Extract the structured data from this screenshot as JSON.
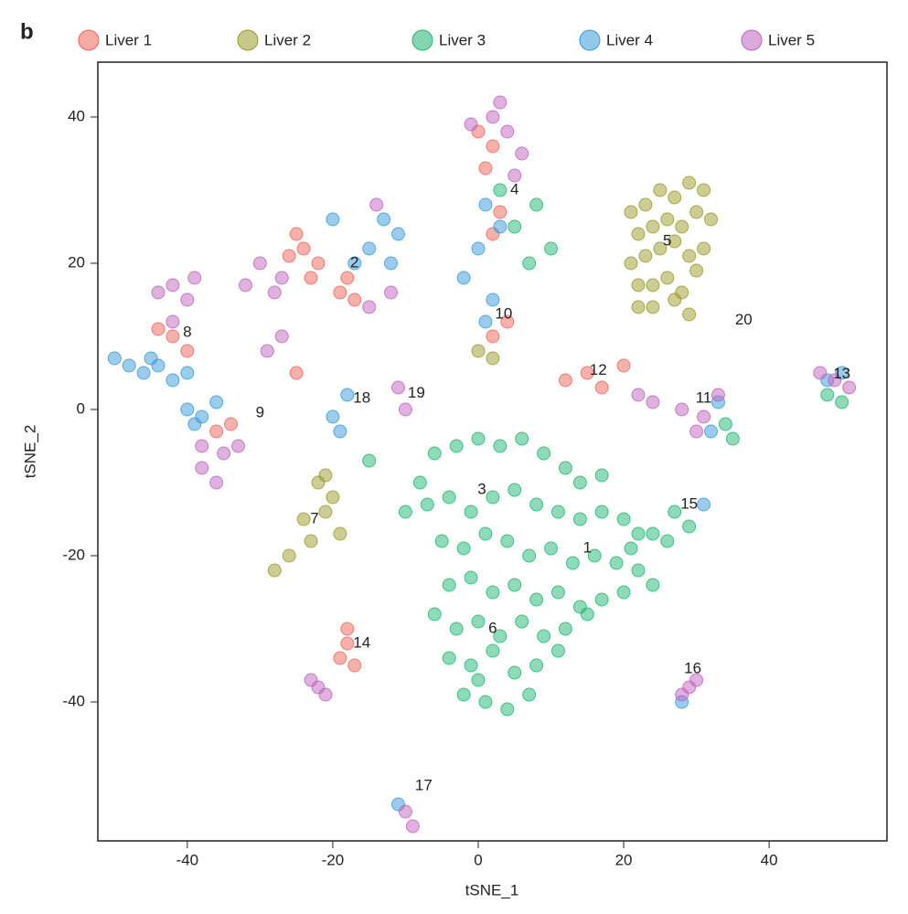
{
  "chart_data": {
    "type": "scatter",
    "panel_label": "b",
    "xlabel": "tSNE_1",
    "ylabel": "tSNE_2",
    "xlim": [
      -52.3,
      56.2
    ],
    "ylim": [
      -59,
      47.5
    ],
    "xticks": [
      -40,
      -20,
      0,
      20,
      40
    ],
    "yticks": [
      -40,
      -20,
      0,
      20,
      40
    ],
    "series": [
      {
        "name": "Liver 1",
        "color": "#f0645a",
        "x": [
          -24,
          -22,
          -25,
          -23,
          -18,
          -17,
          -19,
          -26,
          0,
          2,
          1,
          3,
          2,
          -42,
          -40,
          -44,
          -34,
          -36,
          12,
          15,
          17,
          20,
          -18,
          -19,
          -17,
          -18,
          2,
          4,
          -25
        ],
        "y": [
          22,
          20,
          24,
          18,
          18,
          15,
          16,
          21,
          38,
          36,
          33,
          27,
          24,
          10,
          8,
          11,
          -2,
          -3,
          4,
          5,
          3,
          6,
          -32,
          -34,
          -35,
          -30,
          10,
          12,
          5
        ]
      },
      {
        "name": "Liver 2",
        "color": "#9a9a2a",
        "x": [
          21,
          23,
          25,
          27,
          29,
          31,
          22,
          24,
          26,
          28,
          30,
          32,
          21,
          23,
          25,
          27,
          29,
          31,
          22,
          24,
          26,
          28,
          30,
          24,
          27,
          29,
          22,
          -22,
          -21,
          -23,
          -20,
          -24,
          -19,
          -26,
          -28,
          -21,
          0,
          2
        ],
        "y": [
          27,
          28,
          30,
          29,
          31,
          30,
          24,
          25,
          26,
          25,
          27,
          26,
          20,
          21,
          22,
          23,
          21,
          22,
          17,
          17,
          18,
          16,
          19,
          14,
          15,
          13,
          14,
          -10,
          -14,
          -18,
          -12,
          -15,
          -17,
          -20,
          -22,
          -9,
          8,
          7
        ]
      },
      {
        "name": "Liver 3",
        "color": "#1fb574",
        "x": [
          -8,
          -6,
          -3,
          0,
          3,
          6,
          9,
          12,
          14,
          17,
          -10,
          -7,
          -4,
          -1,
          2,
          5,
          8,
          11,
          14,
          17,
          20,
          22,
          -5,
          -2,
          1,
          4,
          7,
          10,
          13,
          16,
          19,
          22,
          24,
          -4,
          -1,
          2,
          5,
          8,
          11,
          14,
          17,
          20,
          -6,
          -3,
          0,
          3,
          6,
          9,
          12,
          15,
          -4,
          -1,
          2,
          5,
          8,
          11,
          -2,
          1,
          4,
          7,
          0,
          24,
          21,
          3,
          5,
          8,
          10,
          7,
          48,
          50,
          27,
          29,
          26,
          34,
          35,
          -15
        ],
        "y": [
          -10,
          -6,
          -5,
          -4,
          -5,
          -4,
          -6,
          -8,
          -10,
          -9,
          -14,
          -13,
          -12,
          -14,
          -12,
          -11,
          -13,
          -14,
          -15,
          -14,
          -15,
          -17,
          -18,
          -19,
          -17,
          -18,
          -20,
          -19,
          -21,
          -20,
          -21,
          -22,
          -24,
          -24,
          -23,
          -25,
          -24,
          -26,
          -25,
          -27,
          -26,
          -25,
          -28,
          -30,
          -29,
          -31,
          -29,
          -31,
          -30,
          -28,
          -34,
          -35,
          -33,
          -36,
          -35,
          -33,
          -39,
          -40,
          -41,
          -39,
          -37,
          -17,
          -19,
          30,
          25,
          28,
          22,
          20,
          2,
          1,
          -14,
          -16,
          -18,
          -2,
          -4,
          -7
        ]
      },
      {
        "name": "Liver 4",
        "color": "#3a9ad9",
        "x": [
          -48,
          -46,
          -44,
          -42,
          -50,
          -45,
          -40,
          -40,
          -38,
          -36,
          -39,
          -13,
          -11,
          -15,
          -17,
          -12,
          -20,
          1,
          3,
          0,
          -2,
          2,
          1,
          -20,
          -18,
          -19,
          50,
          48,
          33,
          32,
          31,
          28,
          -11
        ],
        "y": [
          6,
          5,
          6,
          4,
          7,
          7,
          5,
          0,
          -1,
          1,
          -2,
          26,
          24,
          22,
          20,
          20,
          26,
          28,
          25,
          22,
          18,
          15,
          12,
          -1,
          2,
          -3,
          5,
          4,
          1,
          -3,
          -13,
          -40,
          -54
        ]
      },
      {
        "name": "Liver 5",
        "color": "#c063c0",
        "x": [
          -42,
          -40,
          -44,
          -42,
          -39,
          -38,
          -35,
          -36,
          -33,
          -38,
          -30,
          -27,
          -28,
          -14,
          -12,
          -15,
          -32,
          2,
          4,
          6,
          5,
          3,
          -1,
          49,
          51,
          47,
          28,
          31,
          33,
          30,
          22,
          24,
          29,
          30,
          28,
          -10,
          -9,
          -22,
          -21,
          -23,
          -11,
          -10,
          -29,
          -27
        ],
        "y": [
          17,
          15,
          16,
          12,
          18,
          -8,
          -6,
          -10,
          -5,
          -5,
          20,
          18,
          16,
          28,
          16,
          14,
          17,
          40,
          38,
          35,
          32,
          42,
          39,
          4,
          3,
          5,
          0,
          -1,
          2,
          -3,
          2,
          1,
          -38,
          -37,
          -39,
          -55,
          -57,
          -38,
          -39,
          -37,
          3,
          0,
          8,
          10
        ]
      }
    ],
    "annotations": [
      {
        "text": "1",
        "x": 15,
        "y": -19
      },
      {
        "text": "2",
        "x": -17,
        "y": 20
      },
      {
        "text": "3",
        "x": 0.5,
        "y": -11
      },
      {
        "text": "4",
        "x": 5,
        "y": 30
      },
      {
        "text": "5",
        "x": 26,
        "y": 23
      },
      {
        "text": "6",
        "x": 2,
        "y": -30
      },
      {
        "text": "7",
        "x": -22.5,
        "y": -15
      },
      {
        "text": "8",
        "x": -40,
        "y": 10.5
      },
      {
        "text": "9",
        "x": -30,
        "y": -0.5
      },
      {
        "text": "10",
        "x": 3.5,
        "y": 13
      },
      {
        "text": "11",
        "x": 31,
        "y": 1.5
      },
      {
        "text": "12",
        "x": 16.5,
        "y": 5.3
      },
      {
        "text": "13",
        "x": 50,
        "y": 4.8
      },
      {
        "text": "14",
        "x": -16,
        "y": -32
      },
      {
        "text": "15",
        "x": 29,
        "y": -13
      },
      {
        "text": "16",
        "x": 29.5,
        "y": -35.5
      },
      {
        "text": "17",
        "x": -7.5,
        "y": -51.5
      },
      {
        "text": "18",
        "x": -16,
        "y": 1.5
      },
      {
        "text": "19",
        "x": -8.5,
        "y": 2.2
      },
      {
        "text": "20",
        "x": 36.5,
        "y": 12.2
      }
    ]
  }
}
